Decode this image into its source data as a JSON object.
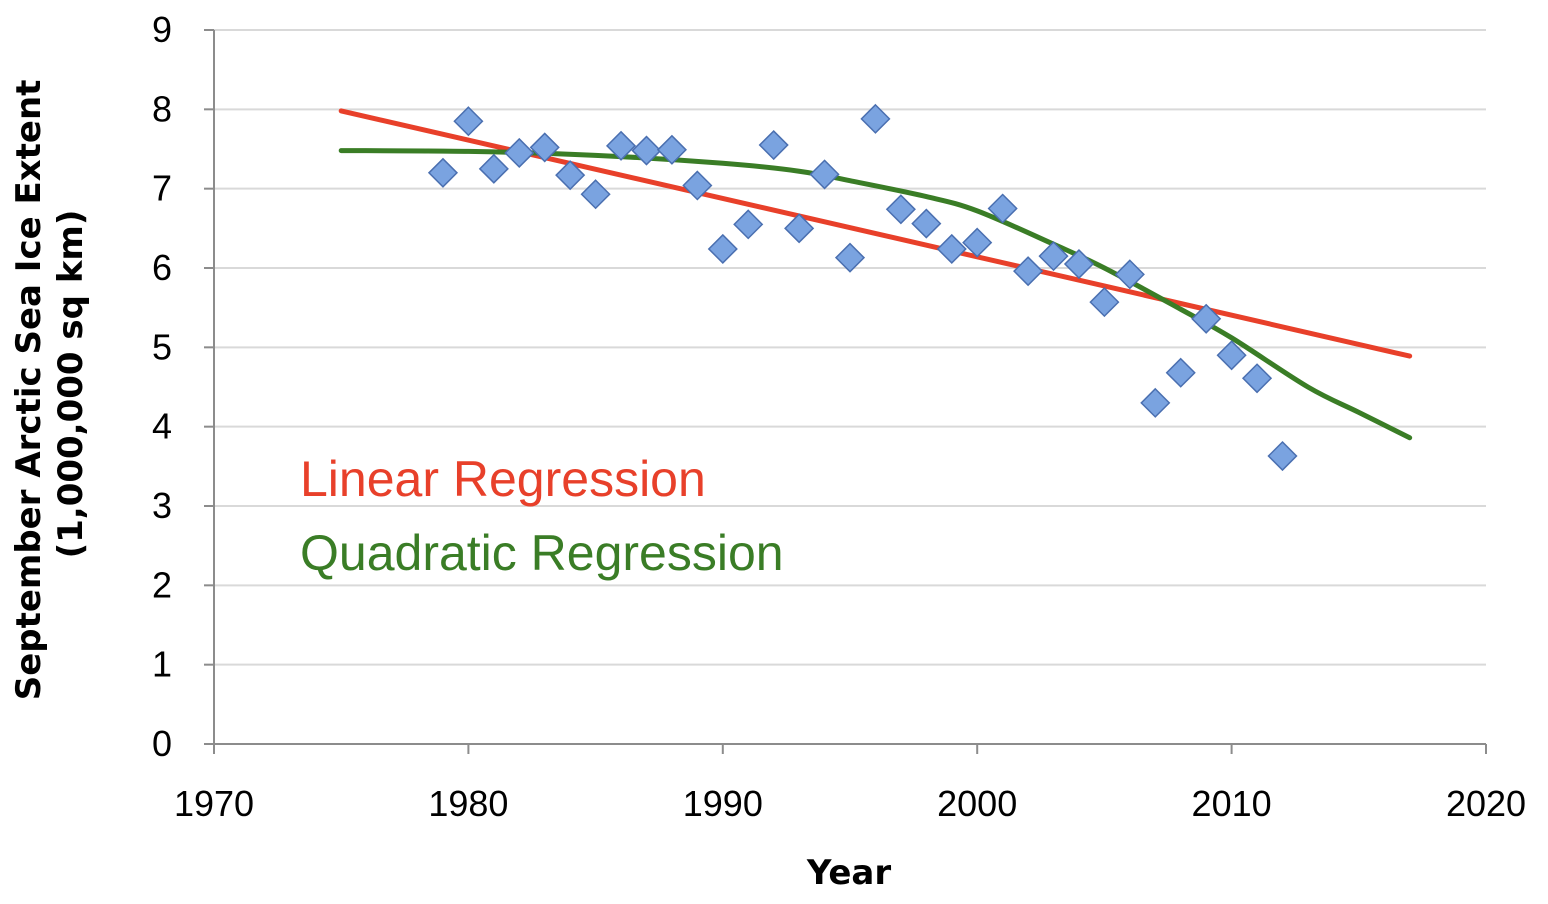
{
  "chart_data": {
    "type": "scatter",
    "xlabel": "Year",
    "ylabel_lines": [
      "September Arctic Sea Ice Extent",
      "(1,000,000 sq km)"
    ],
    "xlim": [
      1970,
      2020
    ],
    "ylim": [
      0,
      9
    ],
    "x_ticks": [
      1970,
      1980,
      1990,
      2000,
      2010,
      2020
    ],
    "y_ticks": [
      0,
      1,
      2,
      3,
      4,
      5,
      6,
      7,
      8,
      9
    ],
    "grid": "horizontal",
    "legend": "none",
    "points": {
      "color": "#7aa3e0",
      "x": [
        1979,
        1980,
        1981,
        1982,
        1983,
        1984,
        1985,
        1986,
        1987,
        1988,
        1989,
        1990,
        1991,
        1992,
        1993,
        1994,
        1995,
        1996,
        1997,
        1998,
        1999,
        2000,
        2001,
        2002,
        2003,
        2004,
        2005,
        2006,
        2007,
        2008,
        2009,
        2010,
        2011,
        2012
      ],
      "y": [
        7.2,
        7.85,
        7.25,
        7.45,
        7.52,
        7.17,
        6.93,
        7.54,
        7.48,
        7.49,
        7.04,
        6.24,
        6.55,
        7.55,
        6.5,
        7.18,
        6.13,
        7.88,
        6.74,
        6.56,
        6.24,
        6.32,
        6.75,
        5.96,
        6.15,
        6.05,
        5.57,
        5.92,
        4.3,
        4.68,
        5.36,
        4.9,
        4.61,
        3.63
      ]
    },
    "series": [
      {
        "name": "Linear Regression",
        "color": "#e8402a",
        "x": [
          1975,
          2017
        ],
        "y": [
          7.98,
          4.89
        ]
      },
      {
        "name": "Quadratic Regression",
        "color": "#3a7d26",
        "x": [
          1975,
          1980,
          1985,
          1990,
          1993,
          1995,
          1998,
          2000,
          2003,
          2005,
          2008,
          2010,
          2013,
          2015,
          2017
        ],
        "y": [
          7.48,
          7.47,
          7.42,
          7.32,
          7.22,
          7.1,
          6.9,
          6.72,
          6.3,
          6.0,
          5.48,
          5.12,
          4.5,
          4.18,
          3.86
        ]
      }
    ],
    "annotations": [
      {
        "text": "Linear Regression",
        "color": "#e8402a"
      },
      {
        "text": "Quadratic Regression",
        "color": "#3a7d26"
      }
    ]
  }
}
